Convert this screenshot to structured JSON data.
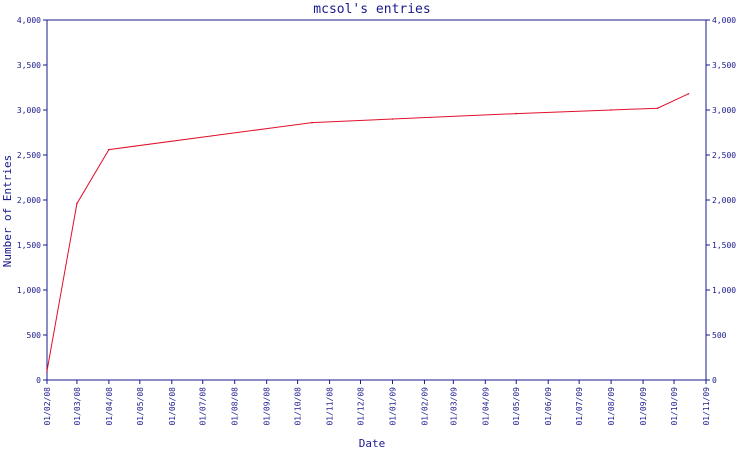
{
  "chart_data": {
    "type": "line",
    "title": "mcsol's entries",
    "xlabel": "Date",
    "ylabel": "Number of Entries",
    "ylim": [
      0,
      4000
    ],
    "y_ticks": [
      "0",
      "500",
      "1,000",
      "1,500",
      "2,000",
      "2,500",
      "3,000",
      "3,500",
      "4,000"
    ],
    "y_tick_values": [
      0,
      500,
      1000,
      1500,
      2000,
      2500,
      3000,
      3500,
      4000
    ],
    "x_ticks": [
      "01/02/08",
      "01/03/08",
      "01/04/08",
      "01/05/08",
      "01/06/08",
      "01/07/08",
      "01/08/08",
      "01/09/08",
      "01/10/08",
      "01/11/08",
      "01/12/08",
      "01/01/09",
      "01/02/09",
      "01/03/09",
      "01/04/09",
      "01/05/09",
      "01/06/09",
      "01/07/09",
      "01/08/09",
      "01/09/09",
      "01/10/09",
      "01/11/09"
    ],
    "grid": false,
    "axis_color": "#1a1a8c",
    "line_color": "#e0102a",
    "series": [
      {
        "x": [
          "2008-02-01",
          "2008-03-01",
          "2008-04-01",
          "2008-10-15",
          "2009-01-01",
          "2009-05-01",
          "2009-08-01",
          "2009-09-15",
          "2009-10-15"
        ],
        "values": [
          100,
          1960,
          2560,
          2860,
          2900,
          2960,
          3000,
          3020,
          3180
        ]
      }
    ]
  }
}
